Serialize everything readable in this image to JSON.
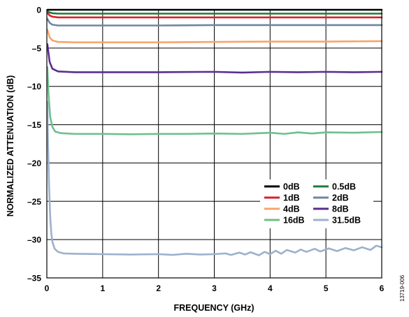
{
  "chart_data": {
    "type": "line",
    "xlabel": "FREQUENCY (GHz)",
    "ylabel": "NORMALIZED ATTENUATION (dB)",
    "xlim": [
      0,
      6
    ],
    "ylim": [
      -35,
      0
    ],
    "x_ticks": [
      "0",
      "1",
      "2",
      "3",
      "4",
      "5",
      "6"
    ],
    "y_ticks": [
      "0",
      "–5",
      "–10",
      "–15",
      "–20",
      "–25",
      "–30",
      "–35"
    ],
    "grid": true,
    "legend_placement": "lower-right",
    "figure_id": "13719-006",
    "series": [
      {
        "name": "0dB",
        "color": "#000000",
        "points": [
          [
            0.01,
            0
          ],
          [
            6,
            0
          ]
        ]
      },
      {
        "name": "0.5dB",
        "color": "#1e7a3c",
        "points": [
          [
            0.01,
            -0.2
          ],
          [
            0.05,
            -0.35
          ],
          [
            0.1,
            -0.45
          ],
          [
            0.2,
            -0.5
          ],
          [
            1,
            -0.5
          ],
          [
            2,
            -0.5
          ],
          [
            3,
            -0.5
          ],
          [
            4,
            -0.5
          ],
          [
            5,
            -0.5
          ],
          [
            6,
            -0.5
          ]
        ]
      },
      {
        "name": "1dB",
        "color": "#d9212e",
        "points": [
          [
            0.01,
            -0.4
          ],
          [
            0.05,
            -0.75
          ],
          [
            0.1,
            -0.9
          ],
          [
            0.2,
            -1.0
          ],
          [
            1,
            -1.0
          ],
          [
            2,
            -1.0
          ],
          [
            3,
            -1.0
          ],
          [
            4,
            -1.0
          ],
          [
            5,
            -1.0
          ],
          [
            6,
            -1.0
          ]
        ]
      },
      {
        "name": "2dB",
        "color": "#6f86a3",
        "points": [
          [
            0.01,
            -1.2
          ],
          [
            0.05,
            -1.7
          ],
          [
            0.1,
            -1.95
          ],
          [
            0.2,
            -2.05
          ],
          [
            1,
            -2.05
          ],
          [
            2,
            -2.05
          ],
          [
            3,
            -2.0
          ],
          [
            4,
            -2.0
          ],
          [
            5,
            -2.0
          ],
          [
            6,
            -2.0
          ]
        ]
      },
      {
        "name": "4dB",
        "color": "#f7a46a",
        "points": [
          [
            0.01,
            -2.6
          ],
          [
            0.05,
            -3.6
          ],
          [
            0.1,
            -4.0
          ],
          [
            0.2,
            -4.2
          ],
          [
            0.5,
            -4.25
          ],
          [
            1,
            -4.25
          ],
          [
            2,
            -4.25
          ],
          [
            3,
            -4.2
          ],
          [
            4,
            -4.15
          ],
          [
            5,
            -4.15
          ],
          [
            6,
            -4.1
          ]
        ]
      },
      {
        "name": "8dB",
        "color": "#5a2e8f",
        "points": [
          [
            0.01,
            -4.5
          ],
          [
            0.05,
            -6.8
          ],
          [
            0.1,
            -7.7
          ],
          [
            0.2,
            -8.05
          ],
          [
            0.5,
            -8.15
          ],
          [
            1,
            -8.15
          ],
          [
            2,
            -8.15
          ],
          [
            3,
            -8.1
          ],
          [
            3.5,
            -8.2
          ],
          [
            4,
            -8.1
          ],
          [
            4.5,
            -8.15
          ],
          [
            5,
            -8.1
          ],
          [
            5.5,
            -8.15
          ],
          [
            6,
            -8.1
          ]
        ]
      },
      {
        "name": "16dB",
        "color": "#6cc08e",
        "points": [
          [
            0.01,
            -7.5
          ],
          [
            0.03,
            -11
          ],
          [
            0.06,
            -14
          ],
          [
            0.1,
            -15.3
          ],
          [
            0.15,
            -15.9
          ],
          [
            0.25,
            -16.1
          ],
          [
            0.5,
            -16.2
          ],
          [
            1,
            -16.2
          ],
          [
            1.5,
            -16.25
          ],
          [
            2,
            -16.2
          ],
          [
            2.5,
            -16.2
          ],
          [
            3,
            -16.15
          ],
          [
            3.5,
            -16.2
          ],
          [
            4,
            -16.05
          ],
          [
            4.25,
            -16.2
          ],
          [
            4.5,
            -16.0
          ],
          [
            4.75,
            -16.15
          ],
          [
            5,
            -16.0
          ],
          [
            5.5,
            -16.05
          ],
          [
            6,
            -15.95
          ]
        ]
      },
      {
        "name": "31.5dB",
        "color": "#9cb1cc",
        "points": [
          [
            0.01,
            -12
          ],
          [
            0.02,
            -17
          ],
          [
            0.04,
            -23
          ],
          [
            0.06,
            -27
          ],
          [
            0.08,
            -29.2
          ],
          [
            0.1,
            -30.3
          ],
          [
            0.14,
            -31.2
          ],
          [
            0.2,
            -31.6
          ],
          [
            0.3,
            -31.8
          ],
          [
            0.5,
            -31.85
          ],
          [
            1,
            -31.9
          ],
          [
            1.5,
            -31.95
          ],
          [
            2,
            -31.9
          ],
          [
            2.25,
            -32.0
          ],
          [
            2.5,
            -31.85
          ],
          [
            2.75,
            -31.95
          ],
          [
            3,
            -31.9
          ],
          [
            3.2,
            -31.8
          ],
          [
            3.3,
            -32.0
          ],
          [
            3.45,
            -31.7
          ],
          [
            3.55,
            -31.95
          ],
          [
            3.65,
            -31.65
          ],
          [
            3.8,
            -32.05
          ],
          [
            3.9,
            -31.6
          ],
          [
            4.0,
            -31.9
          ],
          [
            4.1,
            -31.45
          ],
          [
            4.2,
            -31.85
          ],
          [
            4.3,
            -31.35
          ],
          [
            4.45,
            -31.7
          ],
          [
            4.55,
            -31.3
          ],
          [
            4.65,
            -31.6
          ],
          [
            4.8,
            -31.2
          ],
          [
            4.9,
            -31.55
          ],
          [
            5.05,
            -31.15
          ],
          [
            5.2,
            -31.5
          ],
          [
            5.35,
            -31.1
          ],
          [
            5.5,
            -31.4
          ],
          [
            5.65,
            -31.0
          ],
          [
            5.8,
            -31.35
          ],
          [
            5.9,
            -30.8
          ],
          [
            6,
            -31.0
          ]
        ]
      }
    ]
  }
}
